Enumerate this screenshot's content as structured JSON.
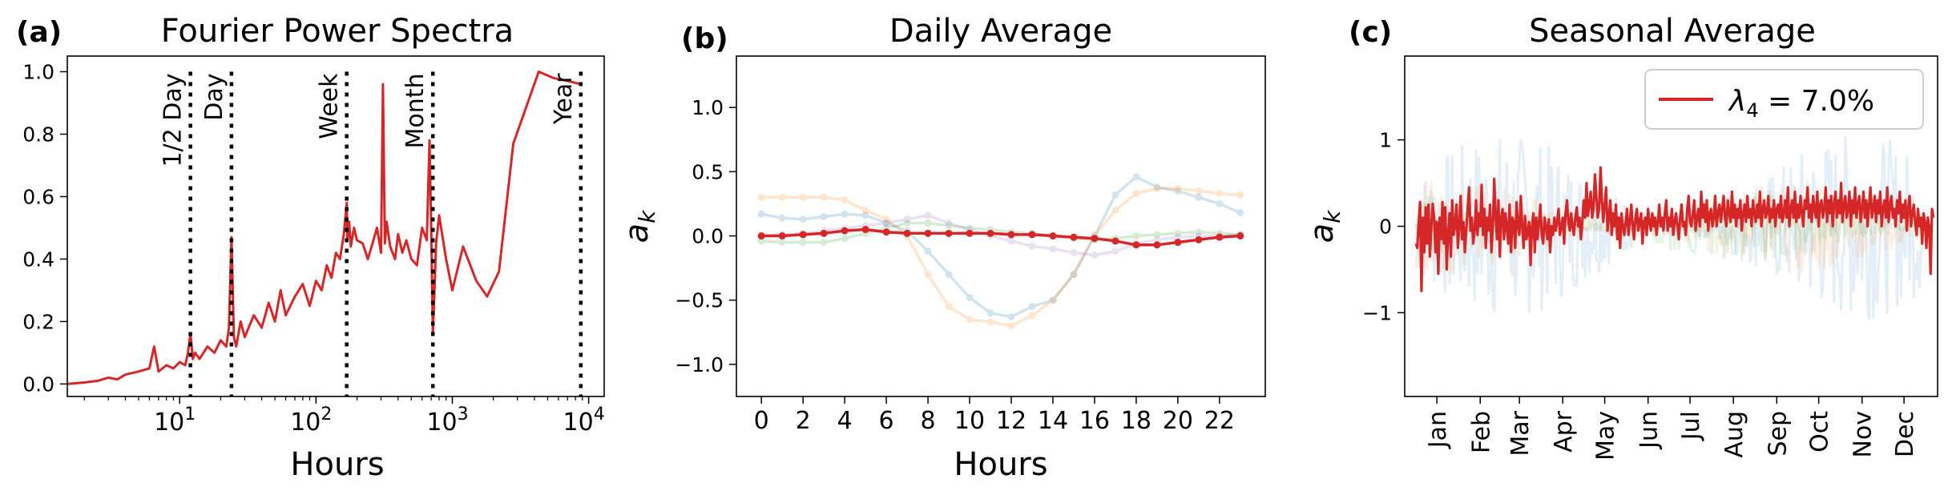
{
  "chart_data": [
    {
      "type": "line",
      "panel_label": "(a)",
      "title": "Fourier Power Spectra",
      "xlabel": "Hours",
      "ylabel": "",
      "xscale": "log",
      "xlim": [
        1.5,
        13000
      ],
      "ylim": [
        -0.04,
        1.05
      ],
      "xticks": [
        {
          "value": 10,
          "base": "10",
          "exp": "1"
        },
        {
          "value": 100,
          "base": "10",
          "exp": "2"
        },
        {
          "value": 1000,
          "base": "10",
          "exp": "3"
        },
        {
          "value": 10000,
          "base": "10",
          "exp": "4"
        }
      ],
      "yticks": [
        0.0,
        0.2,
        0.4,
        0.6,
        0.8,
        1.0
      ],
      "ytick_labels": [
        "0.0",
        "0.2",
        "0.4",
        "0.6",
        "0.8",
        "1.0"
      ],
      "series_color": "#d62728",
      "series": [
        {
          "values_approx": "Normalized power per period in hours (approximate envelope of the noisy spectrum)",
          "x": [
            1.5,
            2,
            2.5,
            3,
            3.5,
            4,
            5,
            6,
            6.5,
            7,
            8,
            9,
            10,
            11,
            11.5,
            12,
            12.5,
            13,
            14,
            16,
            18,
            20,
            22,
            23,
            24,
            25,
            26,
            28,
            30,
            35,
            40,
            45,
            50,
            55,
            60,
            70,
            80,
            90,
            100,
            110,
            120,
            130,
            140,
            150,
            160,
            168,
            170,
            175,
            180,
            190,
            200,
            220,
            240,
            260,
            280,
            300,
            310,
            320,
            330,
            350,
            380,
            400,
            430,
            460,
            500,
            550,
            600,
            650,
            680,
            700,
            720,
            740,
            760,
            800,
            900,
            1000,
            1200,
            1500,
            1800,
            2200,
            2800,
            4300,
            5500,
            7000,
            8760
          ],
          "y": [
            0.0,
            0.005,
            0.01,
            0.02,
            0.015,
            0.03,
            0.04,
            0.05,
            0.12,
            0.04,
            0.06,
            0.05,
            0.07,
            0.06,
            0.1,
            0.16,
            0.08,
            0.1,
            0.08,
            0.12,
            0.1,
            0.14,
            0.12,
            0.18,
            0.47,
            0.15,
            0.12,
            0.2,
            0.15,
            0.22,
            0.18,
            0.26,
            0.2,
            0.3,
            0.22,
            0.28,
            0.32,
            0.25,
            0.33,
            0.3,
            0.38,
            0.34,
            0.42,
            0.4,
            0.48,
            0.58,
            0.46,
            0.52,
            0.44,
            0.5,
            0.46,
            0.45,
            0.4,
            0.45,
            0.5,
            0.42,
            0.96,
            0.45,
            0.52,
            0.44,
            0.4,
            0.48,
            0.42,
            0.46,
            0.4,
            0.38,
            0.5,
            0.46,
            0.78,
            0.5,
            0.16,
            0.3,
            0.45,
            0.54,
            0.4,
            0.3,
            0.44,
            0.33,
            0.28,
            0.36,
            0.77,
            1.0,
            0.98,
            0.97,
            0.96
          ]
        }
      ],
      "vlines": [
        {
          "x": 12,
          "label": "1/2 Day"
        },
        {
          "x": 24,
          "label": "Day"
        },
        {
          "x": 168,
          "label": "Week"
        },
        {
          "x": 720,
          "label": "Month"
        },
        {
          "x": 8760,
          "label": "Year"
        }
      ]
    },
    {
      "type": "line",
      "panel_label": "(b)",
      "title": "Daily Average",
      "xlabel": "Hours",
      "ylabel": "a",
      "ylabel_sub": "k",
      "xlim": [
        -1.2,
        24.2
      ],
      "ylim": [
        -1.25,
        1.4
      ],
      "xticks": [
        0,
        2,
        4,
        6,
        8,
        10,
        12,
        14,
        16,
        18,
        20,
        22
      ],
      "yticks": [
        -1.0,
        -0.5,
        0.0,
        0.5,
        1.0
      ],
      "ytick_labels": [
        "−1.0",
        "−0.5",
        "0.0",
        "0.5",
        "1.0"
      ],
      "x": [
        0,
        1,
        2,
        3,
        4,
        5,
        6,
        7,
        8,
        9,
        10,
        11,
        12,
        13,
        14,
        15,
        16,
        17,
        18,
        19,
        20,
        21,
        22,
        23
      ],
      "series": [
        {
          "color": "#1f77b4",
          "opacity": 0.2,
          "values": [
            0.17,
            0.14,
            0.13,
            0.15,
            0.17,
            0.16,
            0.1,
            0.04,
            -0.12,
            -0.3,
            -0.48,
            -0.6,
            -0.63,
            -0.55,
            -0.5,
            -0.3,
            0.0,
            0.32,
            0.46,
            0.38,
            0.35,
            0.3,
            0.25,
            0.18
          ]
        },
        {
          "color": "#ff7f0e",
          "opacity": 0.2,
          "values": [
            0.3,
            0.3,
            0.3,
            0.3,
            0.28,
            0.2,
            0.13,
            0.0,
            -0.3,
            -0.55,
            -0.65,
            -0.67,
            -0.7,
            -0.62,
            -0.5,
            -0.3,
            0.0,
            0.2,
            0.33,
            0.37,
            0.37,
            0.35,
            0.33,
            0.32
          ]
        },
        {
          "color": "#2ca02c",
          "opacity": 0.2,
          "values": [
            -0.04,
            -0.05,
            -0.05,
            -0.05,
            -0.02,
            0.02,
            0.06,
            0.1,
            0.1,
            0.08,
            0.06,
            0.05,
            0.03,
            0.02,
            0.0,
            -0.02,
            -0.03,
            -0.02,
            0.0,
            0.01,
            0.02,
            0.03,
            0.02,
            0.01
          ]
        },
        {
          "color": "#9467bd",
          "opacity": 0.2,
          "values": [
            0.0,
            0.01,
            0.02,
            0.04,
            0.06,
            0.08,
            0.1,
            0.13,
            0.16,
            0.1,
            0.05,
            0.0,
            -0.04,
            -0.08,
            -0.1,
            -0.13,
            -0.15,
            -0.12,
            -0.06,
            -0.03,
            -0.01,
            0.0,
            0.0,
            0.01
          ]
        },
        {
          "color": "#d62728",
          "opacity": 1.0,
          "values": [
            0.0,
            0.0,
            0.01,
            0.02,
            0.04,
            0.05,
            0.03,
            0.02,
            0.02,
            0.02,
            0.02,
            0.02,
            0.01,
            0.01,
            0.0,
            -0.01,
            -0.02,
            -0.04,
            -0.07,
            -0.07,
            -0.05,
            -0.03,
            -0.01,
            0.0
          ]
        }
      ]
    },
    {
      "type": "line",
      "panel_label": "(c)",
      "title": "Seasonal Average",
      "xlabel": "",
      "ylabel": "a",
      "ylabel_sub": "k",
      "xlim": [
        -8,
        373
      ],
      "ylim": [
        -1.97,
        1.97
      ],
      "xticks": [
        15,
        46,
        74,
        105,
        135,
        166,
        196,
        227,
        258,
        288,
        319,
        349
      ],
      "xtick_labels": [
        "Jan",
        "Feb",
        "Mar",
        "Apr",
        "May",
        "Jun",
        "Jul",
        "Aug",
        "Sep",
        "Oct",
        "Nov",
        "Dec"
      ],
      "yticks": [
        -1,
        0,
        1
      ],
      "ytick_labels": [
        "−1",
        "0",
        "1"
      ],
      "legend": {
        "placement": "top-right",
        "text": "λ",
        "sub": "4",
        "value": " = 7.0%",
        "color": "#d62728"
      },
      "background_series": [
        {
          "color": "#1f77b4",
          "opacity": 0.12,
          "amp": 0.5
        },
        {
          "color": "#ff7f0e",
          "opacity": 0.12,
          "amp": 0.25
        },
        {
          "color": "#2ca02c",
          "opacity": 0.12,
          "amp": 0.2
        }
      ],
      "series": [
        {
          "color": "#d62728",
          "values_approx": "Daily values, day 0-364 (approximate reading)",
          "values": [
            -0.2,
            -0.25,
            0.05,
            0.28,
            -0.75,
            0.1,
            -0.3,
            0.22,
            -0.2,
            0.25,
            -0.35,
            0.0,
            0.26,
            0.1,
            -0.3,
            0.05,
            -0.55,
            0.1,
            -0.15,
            0.28,
            -0.2,
            0.22,
            -0.5,
            -0.1,
            0.15,
            -0.35,
            0.3,
            -0.1,
            0.0,
            0.25,
            -0.25,
            0.0,
            0.35,
            -0.15,
            0.05,
            -0.3,
            -0.05,
            0.2,
            0.45,
            -0.05,
            0.1,
            -0.2,
            -0.05,
            0.3,
            -0.1,
            0.15,
            0.0,
            0.48,
            -0.1,
            0.2,
            -0.25,
            0.1,
            -0.05,
            0.25,
            -0.3,
            0.0,
            0.55,
            0.1,
            -0.15,
            0.3,
            -0.35,
            0.1,
            0.2,
            -0.15,
            0.15,
            0.0,
            -0.2,
            0.25,
            -0.3,
            0.1,
            0.05,
            -0.25,
            0.28,
            0.0,
            -0.1,
            0.35,
            0.0,
            -0.25,
            0.12,
            -0.15,
            -0.05,
            0.05,
            -0.45,
            0.0,
            0.15,
            -0.3,
            0.1,
            -0.15,
            0.05,
            0.25,
            -0.1,
            -0.2,
            0.1,
            0.0,
            -0.15,
            0.08,
            -0.3,
            0.0,
            -0.1,
            0.1,
            -0.05,
            0.05,
            0.2,
            -0.1,
            0.0,
            0.1,
            -0.2,
            0.15,
            0.3,
            0.05,
            -0.05,
            0.15,
            0.0,
            -0.1,
            0.1,
            0.22,
            0.0,
            0.1,
            -0.15,
            0.05,
            0.3,
            0.1,
            0.5,
            0.12,
            0.25,
            0.4,
            0.1,
            0.2,
            0.6,
            0.35,
            0.1,
            0.2,
            0.68,
            0.3,
            0.05,
            0.25,
            0.45,
            -0.05,
            0.1,
            0.3,
            -0.1,
            0.15,
            0.0,
            0.25,
            -0.15,
            0.1,
            -0.25,
            0.15,
            0.0,
            -0.1,
            0.05,
            0.2,
            -0.1,
            0.05,
            0.25,
            0.0,
            -0.15,
            0.1,
            0.2,
            -0.05,
            0.05,
            0.15,
            -0.2,
            0.05,
            0.1,
            -0.1,
            0.2,
            0.05,
            -0.05,
            0.15,
            0.0,
            0.1,
            -0.1,
            0.05,
            0.25,
            0.0,
            0.1,
            -0.05,
            0.15,
            0.3,
            -0.05,
            0.1,
            0.0,
            0.2,
            -0.1,
            0.05,
            0.15,
            0.0,
            -0.15,
            0.1,
            0.25,
            0.0,
            0.05,
            -0.1,
            0.2,
            0.35,
            0.05,
            0.0,
            0.15,
            0.3,
            -0.05,
            0.1,
            0.2,
            0.0,
            0.4,
            0.1,
            0.25,
            0.05,
            0.3,
            -0.05,
            0.15,
            0.2,
            0.0,
            0.1,
            0.35,
            0.0,
            0.15,
            0.25,
            0.05,
            0.2,
            0.35,
            0.1,
            0.0,
            0.3,
            0.15,
            0.05,
            0.4,
            0.1,
            0.25,
            0.0,
            0.2,
            0.1,
            0.3,
            -0.05,
            0.15,
            0.25,
            0.05,
            0.35,
            0.1,
            0.2,
            0.0,
            0.3,
            0.15,
            0.05,
            0.25,
            0.1,
            0.4,
            0.0,
            0.2,
            0.3,
            0.1,
            0.15,
            0.35,
            0.05,
            0.2,
            0.1,
            0.3,
            0.0,
            0.2,
            0.25,
            0.1,
            0.35,
            0.05,
            0.15,
            0.3,
            0.1,
            0.45,
            0.0,
            0.2,
            0.3,
            0.1,
            0.4,
            0.05,
            0.25,
            0.1,
            0.35,
            0.15,
            0.0,
            0.3,
            0.2,
            0.45,
            0.1,
            0.25,
            0.05,
            0.35,
            0.2,
            0.1,
            0.4,
            0.0,
            0.25,
            0.3,
            0.1,
            0.2,
            0.45,
            0.05,
            0.3,
            0.15,
            0.35,
            0.0,
            0.25,
            0.4,
            0.1,
            0.3,
            0.15,
            0.5,
            0.05,
            0.25,
            0.35,
            0.1,
            0.2,
            0.4,
            0.0,
            0.3,
            0.15,
            0.45,
            0.1,
            0.25,
            0.35,
            0.05,
            0.2,
            0.4,
            0.1,
            0.3,
            0.0,
            0.25,
            0.45,
            0.1,
            0.2,
            0.35,
            0.05,
            0.3,
            0.15,
            0.4,
            0.0,
            0.2,
            0.3,
            0.1,
            0.45,
            0.05,
            0.25,
            0.35,
            0.1,
            0.2,
            0.0,
            0.3,
            0.15,
            0.4,
            0.05,
            0.25,
            0.1,
            0.3,
            -0.05,
            0.2,
            0.35,
            0.0,
            0.15,
            0.25,
            0.05,
            -0.1,
            0.2,
            0.0,
            0.1,
            -0.2,
            0.15,
            0.05,
            -0.25,
            0.1,
            0.0,
            -0.55,
            0.2,
            0.1
          ]
        }
      ]
    }
  ]
}
